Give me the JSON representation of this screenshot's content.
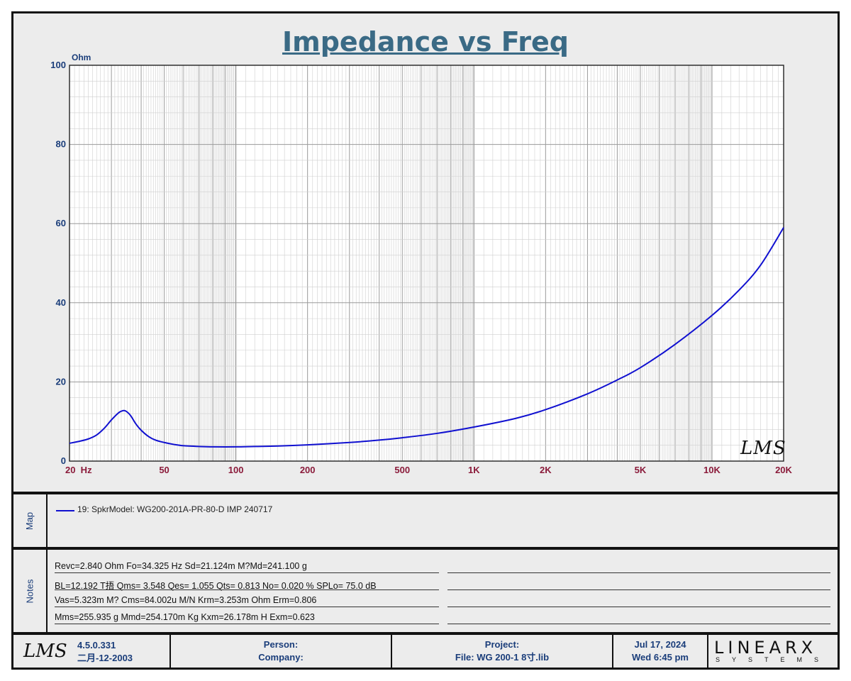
{
  "chart_data": {
    "type": "line",
    "title": "Impedance vs Freq",
    "ylabel": "Ohm",
    "x_scale": "log",
    "xlim": [
      20,
      20000
    ],
    "ylim": [
      0,
      100
    ],
    "grid": true,
    "yticks": [
      "0",
      "20",
      "40",
      "60",
      "80",
      "100"
    ],
    "xticks": [
      {
        "value": 20,
        "label": "20  Hz"
      },
      {
        "value": 50,
        "label": "50"
      },
      {
        "value": 100,
        "label": "100"
      },
      {
        "value": 200,
        "label": "200"
      },
      {
        "value": 500,
        "label": "500"
      },
      {
        "value": 1000,
        "label": "1K"
      },
      {
        "value": 2000,
        "label": "2K"
      },
      {
        "value": 5000,
        "label": "5K"
      },
      {
        "value": 10000,
        "label": "10K"
      },
      {
        "value": 20000,
        "label": "20K"
      }
    ],
    "series": [
      {
        "name": "19: SpkrModel: WG200-201A-PR-80-D IMP 240717",
        "color": "#1010d0",
        "x": [
          20,
          22,
          24,
          26,
          28,
          30,
          32,
          33,
          34.3,
          36,
          38,
          40,
          43,
          46,
          50,
          55,
          60,
          70,
          80,
          100,
          120,
          150,
          200,
          300,
          400,
          500,
          700,
          1000,
          1500,
          2000,
          3000,
          4000,
          5000,
          7000,
          10000,
          13000,
          16000,
          20000
        ],
        "y": [
          4.5,
          5.0,
          5.6,
          6.6,
          8.3,
          10.4,
          12.1,
          12.6,
          12.7,
          11.6,
          9.4,
          7.8,
          6.2,
          5.3,
          4.7,
          4.2,
          3.9,
          3.7,
          3.6,
          3.6,
          3.7,
          3.8,
          4.1,
          4.7,
          5.3,
          5.9,
          7.0,
          8.6,
          10.8,
          13.0,
          17.0,
          20.5,
          23.6,
          29.5,
          36.8,
          43.2,
          49.5,
          59.0
        ]
      }
    ]
  },
  "map": {
    "label": "Map",
    "legend_text": "19: SpkrModel: WG200-201A-PR-80-D IMP 240717"
  },
  "notes": {
    "label": "Notes",
    "rows": [
      "Revc=2.840 Ohm  Fo=34.325 Hz  Sd=21.124m M?Md=241.100 g",
      "BL=12.192 T捂  Qms= 3.548  Qes= 1.055  Qts= 0.813  No= 0.020 %  SPLo= 75.0 dB",
      "Vas=5.323m M? Cms=84.002u M/N  Krm=3.253m Ohm  Erm=0.806",
      "Mms=255.935 g  Mmd=254.170m Kg  Kxm=26.178m H  Exm=0.623"
    ]
  },
  "footer": {
    "logo_text": "LMS",
    "version": "4.5.0.331",
    "version_date": "二月-12-2003",
    "person_label": "Person:",
    "company_label": "Company:",
    "project_label": "Project:",
    "file_label": "File: WG 200-1 8寸.lib",
    "date": "Jul 17, 2024",
    "time": "Wed  6:45 pm",
    "brand_top": "LINEARX",
    "brand_bottom": "SYSTEMS"
  },
  "watermark": "LMS"
}
